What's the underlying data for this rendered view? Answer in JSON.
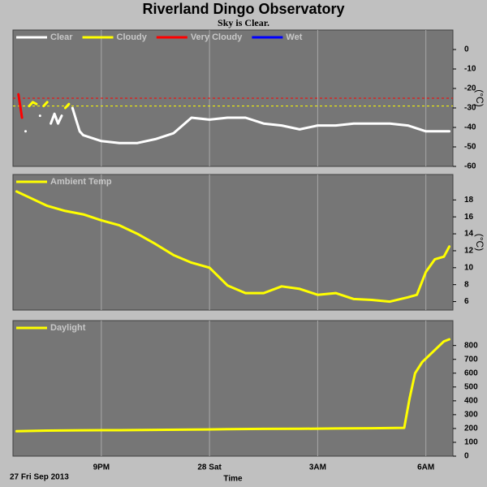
{
  "title": "Riverland Dingo Observatory",
  "subtitle": "Sky is Clear.",
  "chart_data": [
    {
      "type": "line",
      "y_label": "(°C)",
      "legend": "top-left",
      "xlim": [
        18.55,
        30.75
      ],
      "xticks": [
        {
          "value": 21,
          "label": "9PM"
        },
        {
          "value": 24,
          "label": "28 Sat"
        },
        {
          "value": 27,
          "label": "3AM"
        },
        {
          "value": 30,
          "label": "6AM"
        }
      ],
      "ylim": [
        -60,
        10
      ],
      "yticks": [
        0,
        -10,
        -20,
        -30,
        -40,
        -50,
        -60
      ],
      "thresholds": [
        {
          "value": -25,
          "color": "#ff0000"
        },
        {
          "value": -29,
          "color": "#ffff00"
        }
      ],
      "x": [
        18.7,
        18.8,
        18.9,
        19.0,
        19.1,
        19.2,
        19.3,
        19.4,
        19.5,
        19.6,
        19.7,
        19.8,
        19.9,
        20.0,
        20.1,
        20.2,
        20.3,
        20.4,
        20.5,
        21.0,
        21.5,
        22.0,
        22.5,
        23.0,
        23.5,
        24.0,
        24.5,
        25.0,
        25.5,
        26.0,
        26.5,
        27.0,
        27.5,
        28.0,
        28.5,
        29.0,
        29.5,
        30.0,
        30.5,
        30.65
      ],
      "series": [
        {
          "name": "Clear",
          "color": "#ffffff",
          "values": [
            null,
            null,
            -42,
            null,
            null,
            null,
            -34,
            null,
            null,
            -38,
            -33,
            -38,
            -34,
            null,
            null,
            -30,
            -36,
            -42,
            -44,
            -47,
            -48,
            -48,
            -46,
            -43,
            -35,
            -36,
            -35,
            -35,
            -38,
            -39,
            -41,
            -39,
            -39,
            -38,
            -38,
            -38,
            -39,
            -42,
            -42,
            -42
          ]
        },
        {
          "name": "Cloudy",
          "color": "#ffff00",
          "values": [
            null,
            null,
            null,
            -29,
            -27,
            -28,
            null,
            -29,
            -27,
            null,
            null,
            null,
            null,
            -30,
            -28,
            null,
            null,
            null,
            null,
            null,
            null,
            null,
            null,
            null,
            null,
            null,
            null,
            null,
            null,
            null,
            null,
            null,
            null,
            null,
            null,
            null,
            null,
            null,
            null,
            null
          ]
        },
        {
          "name": "Very Cloudy",
          "color": "#ff0000",
          "values": [
            -23,
            -35,
            null,
            null,
            null,
            null,
            null,
            null,
            null,
            null,
            null,
            null,
            null,
            null,
            null,
            null,
            null,
            null,
            null,
            null,
            null,
            null,
            null,
            null,
            null,
            null,
            null,
            null,
            null,
            null,
            null,
            null,
            null,
            null,
            null,
            null,
            null,
            null,
            null,
            null
          ]
        },
        {
          "name": "Wet",
          "color": "#0000ff",
          "values": [
            null,
            null,
            null,
            null,
            null,
            null,
            null,
            null,
            null,
            null,
            null,
            null,
            null,
            null,
            null,
            null,
            null,
            null,
            null,
            null,
            null,
            null,
            null,
            null,
            null,
            null,
            null,
            null,
            null,
            null,
            null,
            null,
            null,
            null,
            null,
            null,
            null,
            null,
            null,
            null
          ]
        }
      ]
    },
    {
      "type": "line",
      "y_label": "(°C)",
      "legend": "top-left",
      "xlim": [
        18.55,
        30.75
      ],
      "xticks": [
        {
          "value": 21,
          "label": "9PM"
        },
        {
          "value": 24,
          "label": "28 Sat"
        },
        {
          "value": 27,
          "label": "3AM"
        },
        {
          "value": 30,
          "label": "6AM"
        }
      ],
      "ylim": [
        5,
        21
      ],
      "yticks": [
        6,
        8,
        10,
        12,
        14,
        16,
        18
      ],
      "x": [
        18.65,
        19.0,
        19.5,
        20.0,
        20.5,
        21.0,
        21.5,
        22.0,
        22.5,
        23.0,
        23.5,
        24.0,
        24.5,
        25.0,
        25.5,
        26.0,
        26.5,
        27.0,
        27.5,
        28.0,
        28.5,
        29.0,
        29.5,
        29.75,
        30.0,
        30.25,
        30.5,
        30.65
      ],
      "series": [
        {
          "name": "Ambient Temp",
          "color": "#ffff00",
          "values": [
            19.0,
            18.3,
            17.3,
            16.7,
            16.3,
            15.6,
            15.0,
            14.0,
            12.8,
            11.5,
            10.6,
            10.0,
            7.9,
            7.0,
            7.0,
            7.8,
            7.5,
            6.8,
            7.0,
            6.3,
            6.2,
            6.0,
            6.5,
            6.8,
            9.5,
            11.0,
            11.3,
            12.5
          ]
        }
      ]
    },
    {
      "type": "line",
      "legend": "top-left",
      "x_label": "Time",
      "date_label": "27 Fri Sep 2013",
      "xlim": [
        18.55,
        30.75
      ],
      "xticks": [
        {
          "value": 21,
          "label": "9PM"
        },
        {
          "value": 24,
          "label": "28 Sat"
        },
        {
          "value": 27,
          "label": "3AM"
        },
        {
          "value": 30,
          "label": "6AM"
        }
      ],
      "ylim": [
        0,
        980
      ],
      "yticks": [
        0,
        100,
        200,
        300,
        400,
        500,
        600,
        700,
        800
      ],
      "x": [
        18.65,
        19.5,
        20.5,
        21.5,
        22.5,
        23.5,
        24.5,
        25.5,
        26.5,
        27.5,
        28.5,
        29.4,
        29.55,
        29.7,
        29.9,
        30.1,
        30.3,
        30.5,
        30.65
      ],
      "series": [
        {
          "name": "Daylight",
          "color": "#ffff00",
          "values": [
            180,
            185,
            187,
            188,
            190,
            192,
            195,
            197,
            198,
            200,
            202,
            205,
            420,
            600,
            680,
            730,
            780,
            830,
            845
          ]
        }
      ]
    }
  ]
}
